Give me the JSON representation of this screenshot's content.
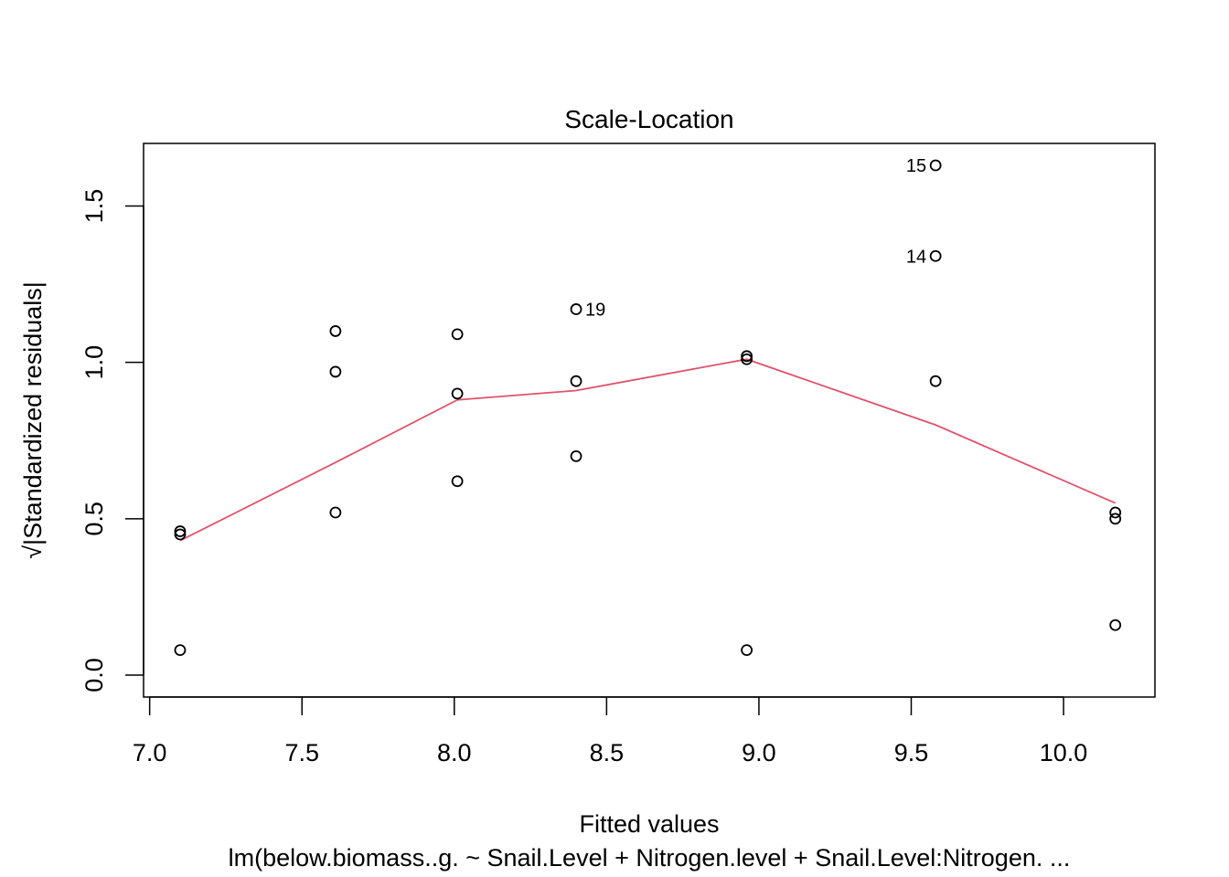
{
  "chart_data": {
    "type": "scatter",
    "title": "Scale-Location",
    "xlabel": "Fitted values",
    "ylabel": "Standardized residuals",
    "ylabel_prefix": "√|",
    "ylabel_suffix": "|",
    "subtitle": "lm(below.biomass..g. ~ Snail.Level + Nitrogen.level + Snail.Level:Nitrogen. ...",
    "xlim": [
      6.98,
      10.3
    ],
    "ylim": [
      -0.07,
      1.7
    ],
    "x_ticks": [
      7.0,
      7.5,
      8.0,
      8.5,
      9.0,
      9.5,
      10.0
    ],
    "x_tick_labels": [
      "7.0",
      "7.5",
      "8.0",
      "8.5",
      "9.0",
      "9.5",
      "10.0"
    ],
    "y_ticks": [
      0.0,
      0.5,
      1.0,
      1.5
    ],
    "y_tick_labels": [
      "0.0",
      "0.5",
      "1.0",
      "1.5"
    ],
    "grid": false,
    "points": [
      {
        "x": 7.1,
        "y": 0.46
      },
      {
        "x": 7.1,
        "y": 0.45
      },
      {
        "x": 7.1,
        "y": 0.08
      },
      {
        "x": 7.61,
        "y": 1.1
      },
      {
        "x": 7.61,
        "y": 0.97
      },
      {
        "x": 7.61,
        "y": 0.52
      },
      {
        "x": 8.01,
        "y": 1.09
      },
      {
        "x": 8.01,
        "y": 0.9
      },
      {
        "x": 8.01,
        "y": 0.62
      },
      {
        "x": 8.4,
        "y": 1.17,
        "label": "19",
        "label_side": "right"
      },
      {
        "x": 8.4,
        "y": 0.94
      },
      {
        "x": 8.4,
        "y": 0.7
      },
      {
        "x": 8.96,
        "y": 1.01
      },
      {
        "x": 8.96,
        "y": 1.02
      },
      {
        "x": 8.96,
        "y": 0.08
      },
      {
        "x": 9.58,
        "y": 1.63,
        "label": "15",
        "label_side": "left"
      },
      {
        "x": 9.58,
        "y": 1.34,
        "label": "14",
        "label_side": "left"
      },
      {
        "x": 9.58,
        "y": 0.94
      },
      {
        "x": 10.17,
        "y": 0.52
      },
      {
        "x": 10.17,
        "y": 0.5
      },
      {
        "x": 10.17,
        "y": 0.16
      }
    ],
    "smooth_line": {
      "color": "#DF536B",
      "x": [
        7.1,
        7.61,
        8.01,
        8.4,
        8.96,
        9.58,
        10.17
      ],
      "y": [
        0.43,
        0.68,
        0.88,
        0.91,
        1.01,
        0.8,
        0.55
      ]
    }
  }
}
